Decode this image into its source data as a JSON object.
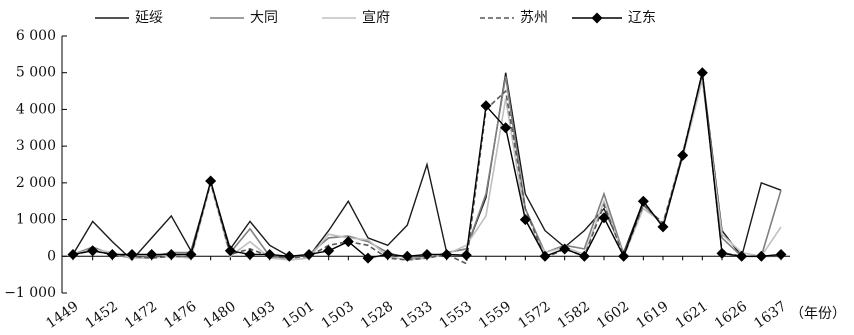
{
  "chart_data": {
    "type": "line",
    "x_label": "（年份）",
    "categories": [
      "1449",
      null,
      "1452",
      null,
      "1472",
      null,
      "1476",
      null,
      "1480",
      null,
      "1493",
      null,
      "1501",
      null,
      "1503",
      null,
      "1528",
      null,
      "1533",
      null,
      "1553",
      null,
      "1559",
      null,
      "1572",
      null,
      "1582",
      null,
      "1602",
      null,
      "1619",
      null,
      "1621",
      null,
      "1626",
      null,
      "1637"
    ],
    "ylim": [
      -1000,
      6000
    ],
    "yticks": [
      {
        "value": -1000,
        "label": "−1 000"
      },
      0,
      {
        "value": 1000,
        "label": "1 000"
      },
      {
        "value": 2000,
        "label": "2 000"
      },
      {
        "value": 3000,
        "label": "3 000"
      },
      {
        "value": 4000,
        "label": "4 000"
      },
      {
        "value": 5000,
        "label": "5 000"
      },
      {
        "value": 6000,
        "label": "6 000"
      }
    ],
    "legend": "top",
    "series": [
      {
        "name": "延绥",
        "color": "#1a1a1a",
        "values": [
          50,
          950,
          400,
          -100,
          500,
          1100,
          150,
          2000,
          200,
          950,
          300,
          0,
          0,
          700,
          1500,
          500,
          300,
          850,
          2500,
          100,
          200,
          1600,
          5000,
          1700,
          700,
          250,
          700,
          1300,
          100,
          1500,
          800,
          2750,
          5000,
          700,
          0,
          2000,
          1800
        ]
      },
      {
        "name": "大同",
        "color": "#7f7f7f",
        "values": [
          50,
          250,
          50,
          -50,
          0,
          100,
          100,
          2000,
          100,
          750,
          0,
          -50,
          50,
          500,
          550,
          400,
          100,
          -50,
          -50,
          100,
          200,
          1700,
          4900,
          1300,
          100,
          300,
          200,
          1700,
          50,
          1400,
          850,
          2800,
          4900,
          500,
          0,
          0,
          1800
        ]
      },
      {
        "name": "宣府",
        "color": "#c0c0c0",
        "values": [
          50,
          200,
          100,
          -50,
          -50,
          0,
          -50,
          2000,
          0,
          400,
          -50,
          -100,
          -50,
          600,
          500,
          450,
          0,
          -100,
          -50,
          50,
          300,
          1100,
          4300,
          1000,
          100,
          250,
          50,
          1500,
          0,
          1300,
          900,
          2700,
          4800,
          600,
          100,
          0,
          800
        ]
      },
      {
        "name": "苏州",
        "color": "#595959",
        "dash": "dashed",
        "values": [
          50,
          150,
          50,
          0,
          -50,
          0,
          0,
          2000,
          50,
          200,
          0,
          -50,
          0,
          300,
          400,
          300,
          -50,
          -100,
          -50,
          50,
          -200,
          4000,
          4500,
          1300,
          -50,
          200,
          0,
          1400,
          0,
          1400,
          900,
          2800,
          5000,
          100,
          0,
          0,
          0
        ]
      },
      {
        "name": "辽东",
        "color": "#000000",
        "marker": "diamond",
        "values": [
          50,
          150,
          50,
          50,
          50,
          50,
          50,
          2050,
          150,
          50,
          50,
          0,
          50,
          150,
          400,
          -50,
          50,
          0,
          50,
          50,
          30,
          4100,
          3500,
          1000,
          0,
          200,
          0,
          1050,
          0,
          1500,
          800,
          2750,
          5000,
          80,
          0,
          0,
          50
        ]
      }
    ]
  }
}
